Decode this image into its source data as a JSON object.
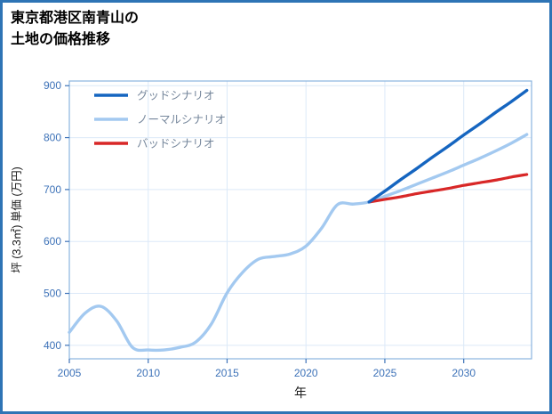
{
  "title": "東京都港区南青山の\n土地の価格推移",
  "frame": {
    "border_color": "#2e74b5",
    "background": "#ffffff"
  },
  "theme": {
    "grid_color": "#dce9f8",
    "spine_color": "#8ab4de",
    "tick_color": "#3d72b8",
    "axis_label_color": "#1a1a1a",
    "legend_text_color": "#76879c"
  },
  "chart_data": {
    "type": "line",
    "title": "東京都港区南青山の土地の価格推移",
    "xlabel": "年",
    "ylabel": "坪 (3.3㎡) 単価 (万円)",
    "xlim": [
      2005,
      2034.3
    ],
    "ylim": [
      374,
      909
    ],
    "xticks": [
      2005,
      2010,
      2015,
      2020,
      2025,
      2030
    ],
    "yticks": [
      400,
      500,
      600,
      700,
      800,
      900
    ],
    "grid": true,
    "legend_position": "upper-left",
    "legend": [
      {
        "label": "グッドシナリオ",
        "color": "#1565c0"
      },
      {
        "label": "ノーマルシナリオ",
        "color": "#a3c9f0"
      },
      {
        "label": "バッドシナリオ",
        "color": "#d82727"
      }
    ],
    "series": [
      {
        "id": "normal",
        "name": "ノーマルシナリオ",
        "color": "#a3c9f0",
        "width": 3.4,
        "x": [
          2005,
          2006,
          2007,
          2008,
          2009,
          2010,
          2011,
          2012,
          2013,
          2014,
          2015,
          2016,
          2017,
          2018,
          2019,
          2020,
          2021,
          2022,
          2023,
          2024,
          2025,
          2026,
          2027,
          2028,
          2029,
          2030,
          2031,
          2032,
          2033,
          2034
        ],
        "y": [
          425,
          462,
          475,
          447,
          396,
          391,
          391,
          396,
          406,
          441,
          501,
          541,
          566,
          571,
          576,
          591,
          626,
          671,
          672,
          676,
          687,
          698,
          710,
          722,
          734,
          747,
          760,
          774,
          789,
          806
        ]
      },
      {
        "id": "bad",
        "name": "バッドシナリオ",
        "color": "#d82727",
        "width": 3.2,
        "x": [
          2024,
          2025,
          2026,
          2027,
          2028,
          2029,
          2030,
          2031,
          2032,
          2033,
          2034
        ],
        "y": [
          676,
          681,
          686,
          692,
          697,
          702,
          708,
          713,
          718,
          724,
          729
        ]
      },
      {
        "id": "good",
        "name": "グッドシナリオ",
        "color": "#1565c0",
        "width": 3.4,
        "x": [
          2024,
          2025,
          2026,
          2027,
          2028,
          2029,
          2030,
          2031,
          2032,
          2033,
          2034
        ],
        "y": [
          676,
          697,
          719,
          740,
          762,
          783,
          805,
          826,
          848,
          869,
          891
        ]
      }
    ]
  }
}
